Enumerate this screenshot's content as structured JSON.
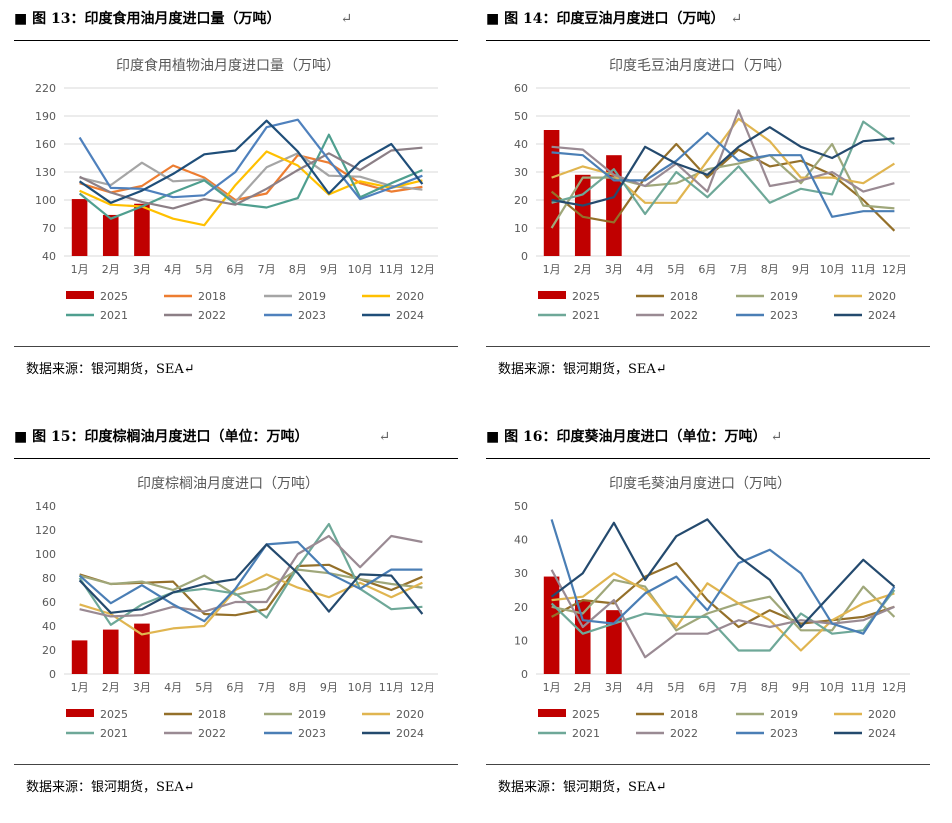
{
  "colors": {
    "2025": "#c00000",
    "2018": "#ed7d31",
    "2019": "#a5a5a5",
    "2020": "#ffc000",
    "2021": "#4f9f8f",
    "2022": "#8c7f86",
    "2023": "#4f81bd",
    "2024": "#1f4e79",
    "alt": {
      "2018": "#94702a",
      "2019": "#9fa77a",
      "2020": "#e0b550",
      "2021": "#6ea898",
      "2022": "#9a8a93",
      "2023": "#4a7eb5",
      "2024": "#244a6e"
    }
  },
  "return_mark": "↵",
  "panels": [
    {
      "id": "fig13",
      "fig_title": "图 13：印度食用油月度进口量（万吨）",
      "source": "数据来源：银河期货，SEA↵",
      "chart_data": {
        "type": "bar+line",
        "title": "印度食用植物油月度进口量（万吨）",
        "categories": [
          "1月",
          "2月",
          "3月",
          "4月",
          "5月",
          "6月",
          "7月",
          "8月",
          "9月",
          "10月",
          "11月",
          "12月"
        ],
        "yticks": [
          40,
          70,
          100,
          130,
          160,
          190,
          220
        ],
        "ylim": [
          40,
          220
        ],
        "grid": true,
        "palette": "main",
        "bar_series": {
          "name": "2025",
          "values": [
            101,
            84,
            96
          ]
        },
        "series": [
          {
            "name": "2018",
            "values": [
              118,
              108,
              115,
              137,
              124,
              100,
              107,
              148,
              140,
              118,
              109,
              114
            ]
          },
          {
            "name": "2019",
            "values": [
              124,
              116,
              140,
              120,
              122,
              98,
              135,
              150,
              126,
              125,
              115,
              111
            ]
          },
          {
            "name": "2020",
            "values": [
              110,
              95,
              93,
              80,
              73,
              116,
              152,
              137,
              106,
              120,
              113,
              121
            ]
          },
          {
            "name": "2021",
            "values": [
              107,
              80,
              93,
              108,
              121,
              96,
              92,
              102,
              170,
              103,
              118,
              132
            ]
          },
          {
            "name": "2022",
            "values": [
              125,
              108,
              98,
              91,
              101,
              95,
              112,
              132,
              150,
              132,
              153,
              156
            ]
          },
          {
            "name": "2023",
            "values": [
              167,
              113,
              112,
              103,
              105,
              130,
              178,
              186,
              143,
              101,
              113,
              126
            ]
          },
          {
            "name": "2024",
            "values": [
              120,
              97,
              110,
              128,
              149,
              153,
              185,
              152,
              107,
              141,
              160,
              117
            ]
          }
        ]
      }
    },
    {
      "id": "fig14",
      "fig_title": "图 14：印度豆油月度进口（万吨）",
      "source": "数据来源：银河期货，SEA↵",
      "chart_data": {
        "type": "bar+line",
        "title": "印度毛豆油月度进口（万吨）",
        "categories": [
          "1月",
          "2月",
          "3月",
          "4月",
          "5月",
          "6月",
          "7月",
          "8月",
          "9月",
          "10月",
          "11月",
          "12月"
        ],
        "yticks": [
          0,
          10,
          20,
          30,
          40,
          50,
          60
        ],
        "ylim": [
          0,
          60
        ],
        "grid": true,
        "palette": "alt",
        "bar_series": {
          "name": "2025",
          "values": [
            45,
            29,
            36
          ]
        },
        "series": [
          {
            "name": "2018",
            "values": [
              23,
              14,
              12,
              28,
              40,
              28,
              38,
              32,
              34,
              29,
              20,
              9
            ]
          },
          {
            "name": "2019",
            "values": [
              10,
              28,
              28,
              25,
              26,
              31,
              33,
              36,
              26,
              40,
              18,
              17
            ]
          },
          {
            "name": "2020",
            "values": [
              28,
              32,
              29,
              19,
              19,
              34,
              49,
              41,
              28,
              28,
              26,
              33
            ]
          },
          {
            "name": "2021",
            "values": [
              19,
              22,
              31,
              15,
              30,
              21,
              32,
              19,
              24,
              22,
              48,
              40
            ]
          },
          {
            "name": "2022",
            "values": [
              39,
              38,
              29,
              25,
              33,
              23,
              52,
              25,
              27,
              30,
              23,
              26
            ]
          },
          {
            "name": "2023",
            "values": [
              37,
              36,
              27,
              27,
              34,
              44,
              34,
              36,
              36,
              14,
              16,
              16
            ]
          },
          {
            "name": "2024",
            "values": [
              20,
              18,
              21,
              39,
              33,
              29,
              39,
              46,
              39,
              35,
              41,
              42
            ]
          }
        ]
      }
    },
    {
      "id": "fig15",
      "fig_title": "图 15：印度棕榈油月度进口（单位：万吨）",
      "source": "数据来源：银河期货，SEA↵",
      "chart_data": {
        "type": "bar+line",
        "title": "印度棕榈油月度进口（万吨）",
        "categories": [
          "1月",
          "2月",
          "3月",
          "4月",
          "5月",
          "6月",
          "7月",
          "8月",
          "9月",
          "10月",
          "11月",
          "12月"
        ],
        "yticks": [
          0,
          20,
          40,
          60,
          80,
          100,
          120,
          140
        ],
        "ylim": [
          0,
          140
        ],
        "grid": false,
        "palette": "alt",
        "bar_series": {
          "name": "2025",
          "values": [
            28,
            37,
            42
          ]
        },
        "series": [
          {
            "name": "2018",
            "values": [
              83,
              75,
              76,
              77,
              50,
              49,
              54,
              90,
              91,
              79,
              70,
              81
            ]
          },
          {
            "name": "2019",
            "values": [
              82,
              75,
              77,
              70,
              82,
              66,
              71,
              87,
              84,
              79,
              75,
              72
            ]
          },
          {
            "name": "2020",
            "values": [
              58,
              50,
              33,
              38,
              40,
              70,
              83,
              72,
              64,
              76,
              64,
              76
            ]
          },
          {
            "name": "2021",
            "values": [
              80,
              41,
              58,
              68,
              71,
              67,
              47,
              89,
              125,
              71,
              54,
              56
            ]
          },
          {
            "name": "2022",
            "values": [
              54,
              48,
              49,
              56,
              52,
              60,
              60,
              100,
              115,
              89,
              115,
              110
            ]
          },
          {
            "name": "2023",
            "values": [
              82,
              59,
              74,
              58,
              44,
              71,
              108,
              110,
              84,
              71,
              87,
              87
            ]
          },
          {
            "name": "2024",
            "values": [
              78,
              51,
              54,
              68,
              75,
              79,
              108,
              84,
              52,
              83,
              82,
              50
            ]
          }
        ]
      }
    },
    {
      "id": "fig16",
      "fig_title": "图 16：印度葵油月度进口（单位：万吨）",
      "source": "数据来源：银河期货，SEA↵",
      "chart_data": {
        "type": "bar+line",
        "title": "印度毛葵油月度进口（万吨）",
        "categories": [
          "1月",
          "2月",
          "3月",
          "4月",
          "5月",
          "6月",
          "7月",
          "8月",
          "9月",
          "10月",
          "11月",
          "12月"
        ],
        "yticks": [
          0,
          10,
          20,
          30,
          40,
          50
        ],
        "ylim": [
          0,
          50
        ],
        "grid": false,
        "palette": "alt",
        "bar_series": {
          "name": "2025",
          "values": [
            29,
            22,
            19
          ]
        },
        "series": [
          {
            "name": "2018",
            "values": [
              17,
              22,
              21,
              29,
              33,
              22,
              14,
              19,
              15,
              16,
              17,
              20
            ]
          },
          {
            "name": "2019",
            "values": [
              20,
              18,
              28,
              26,
              13,
              18,
              21,
              23,
              13,
              13,
              26,
              17
            ]
          },
          {
            "name": "2020",
            "values": [
              22,
              23,
              30,
              25,
              14,
              27,
              21,
              16,
              7,
              16,
              21,
              24
            ]
          },
          {
            "name": "2021",
            "values": [
              21,
              12,
              15,
              18,
              17,
              17,
              7,
              7,
              18,
              12,
              13,
              25
            ]
          },
          {
            "name": "2022",
            "values": [
              31,
              14,
              22,
              5,
              12,
              12,
              16,
              14,
              16,
              15,
              16,
              20
            ]
          },
          {
            "name": "2023",
            "values": [
              46,
              16,
              15,
              24,
              29,
              19,
              33,
              37,
              30,
              15,
              12,
              26
            ]
          },
          {
            "name": "2024",
            "values": [
              23,
              30,
              45,
              28,
              41,
              46,
              35,
              28,
              14,
              24,
              34,
              26
            ]
          }
        ]
      }
    }
  ]
}
